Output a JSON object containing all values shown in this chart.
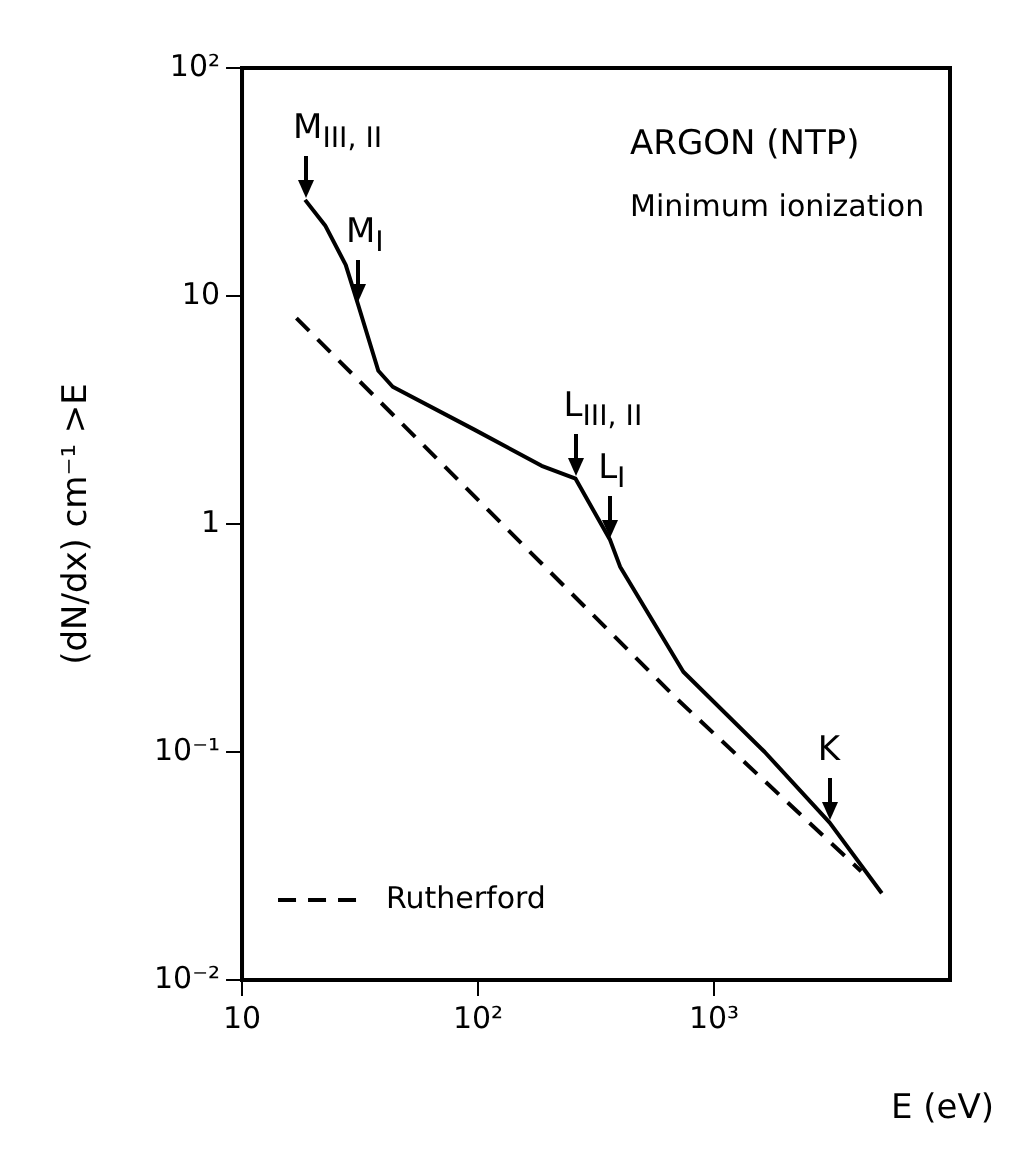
{
  "chart_data": {
    "type": "line",
    "xlabel": "E (eV)",
    "ylabel": "(dN/dx) cm⁻¹  >E",
    "log": "xy",
    "xlim": [
      10,
      10000
    ],
    "ylim": [
      0.01,
      100
    ],
    "xticks": [
      {
        "value": 10,
        "label": "10"
      },
      {
        "value": 100,
        "label": "10²"
      },
      {
        "value": 1000,
        "label": "10³"
      }
    ],
    "yticks": [
      {
        "value": 0.01,
        "label": "10⁻²"
      },
      {
        "value": 0.1,
        "label": "10⁻¹"
      },
      {
        "value": 1,
        "label": "1"
      },
      {
        "value": 10,
        "label": "10"
      },
      {
        "value": 100,
        "label": "10²"
      }
    ],
    "grid": false,
    "legend": "bottom left",
    "marker": "none",
    "series": [
      {
        "color": "#000000",
        "line_style": "solid",
        "x": [
          18.5,
          22.5,
          27.5,
          31,
          37.8,
          43.5,
          96,
          186,
          259,
          363,
          400,
          741,
          1640,
          3090,
          5140
        ],
        "values": [
          26.4,
          20.4,
          13.7,
          9.2,
          4.7,
          4.0,
          2.6,
          1.8,
          1.58,
          0.85,
          0.65,
          0.225,
          0.1,
          0.049,
          0.024
        ]
      },
      {
        "name": "Rutherford",
        "color": "#000000",
        "line_style": "dashed",
        "x": [
          17,
          700,
          4200
        ],
        "values": [
          8,
          0.17,
          0.03
        ]
      }
    ],
    "annotations": [
      {
        "text": "M$_{III, II}$",
        "x": 18.5,
        "y": 26.4
      },
      {
        "text": "M$_{I}$",
        "x": 31,
        "y": 9.2
      },
      {
        "text": "L$_{III, II}$",
        "x": 259,
        "y": 1.58
      },
      {
        "text": "L$_{I}$",
        "x": 363,
        "y": 0.85
      },
      {
        "text": "K",
        "x": 3090,
        "y": 0.049
      },
      "ARGON (NTP)",
      "Minimum ionization"
    ]
  }
}
